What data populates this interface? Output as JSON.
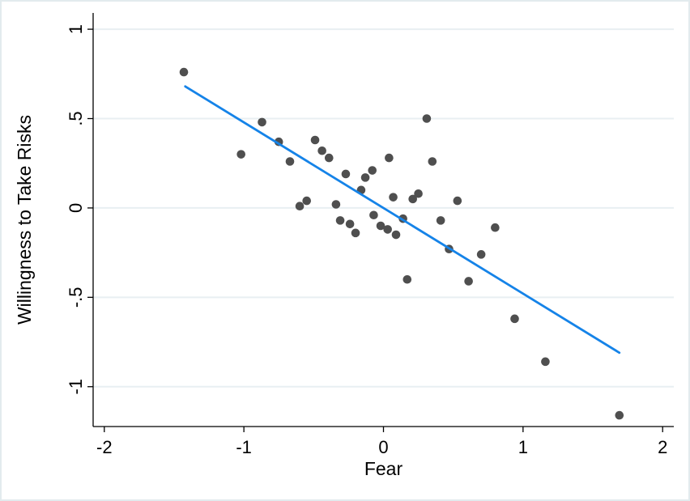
{
  "chart_data": {
    "type": "scatter",
    "title": "",
    "xlabel": "Fear",
    "ylabel": "Willingness to Take Risks",
    "xlim": [
      -2.08,
      2.08
    ],
    "ylim": [
      -1.223,
      1.091
    ],
    "x_ticks": [
      -2,
      -1,
      0,
      1,
      2
    ],
    "x_tick_labels": [
      "-2",
      "-1",
      "0",
      "1",
      "2"
    ],
    "y_ticks": [
      1,
      0.5,
      0,
      -0.5,
      -1
    ],
    "y_tick_labels": [
      "1",
      ".5",
      "0",
      "-.5",
      "-1"
    ],
    "grid": "horizontal-only",
    "legend": "none",
    "points": [
      [
        -1.43,
        0.76
      ],
      [
        -1.02,
        0.3
      ],
      [
        -0.87,
        0.48
      ],
      [
        -0.75,
        0.37
      ],
      [
        -0.67,
        0.26
      ],
      [
        -0.6,
        0.01
      ],
      [
        -0.55,
        0.04
      ],
      [
        -0.49,
        0.38
      ],
      [
        -0.44,
        0.32
      ],
      [
        -0.39,
        0.28
      ],
      [
        -0.34,
        0.02
      ],
      [
        -0.31,
        -0.07
      ],
      [
        -0.27,
        0.19
      ],
      [
        -0.24,
        -0.09
      ],
      [
        -0.2,
        -0.14
      ],
      [
        -0.16,
        0.1
      ],
      [
        -0.13,
        0.17
      ],
      [
        -0.08,
        0.21
      ],
      [
        -0.07,
        -0.04
      ],
      [
        -0.02,
        -0.1
      ],
      [
        0.03,
        -0.12
      ],
      [
        0.04,
        0.28
      ],
      [
        0.07,
        0.06
      ],
      [
        0.09,
        -0.15
      ],
      [
        0.14,
        -0.06
      ],
      [
        0.17,
        -0.4
      ],
      [
        0.21,
        0.05
      ],
      [
        0.25,
        0.08
      ],
      [
        0.31,
        0.5
      ],
      [
        0.35,
        0.26
      ],
      [
        0.41,
        -0.07
      ],
      [
        0.47,
        -0.23
      ],
      [
        0.53,
        0.04
      ],
      [
        0.61,
        -0.41
      ],
      [
        0.7,
        -0.26
      ],
      [
        0.8,
        -0.11
      ],
      [
        0.94,
        -0.62
      ],
      [
        1.16,
        -0.86
      ],
      [
        1.69,
        -1.16
      ]
    ],
    "fit_line": {
      "x1": -1.42,
      "y1": 0.68,
      "x2": 1.69,
      "y2": -0.81
    },
    "colors": {
      "marker": "#4f4f4f",
      "fit_line": "#1583e8",
      "grid": "#e8eff2",
      "axis": "#000000",
      "background": "#ffffff",
      "border": "#e2ebee"
    }
  }
}
